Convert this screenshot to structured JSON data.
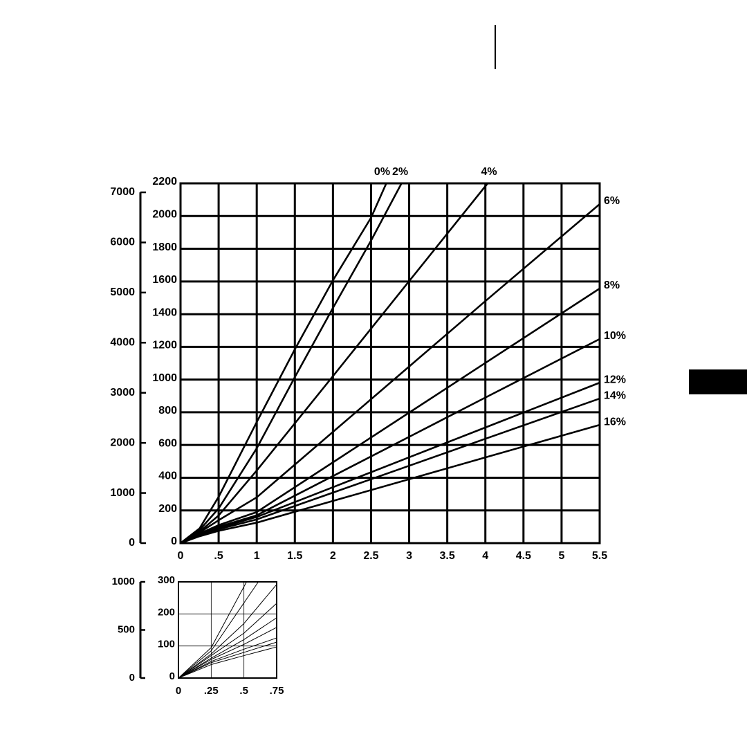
{
  "chart_data": [
    {
      "type": "line",
      "xlim": [
        0,
        5.5
      ],
      "ylim": [
        0,
        2200
      ],
      "y2lim": [
        0,
        7000
      ],
      "xticks": [
        0,
        {
          "value": 0.5,
          "label": ".5"
        },
        1,
        1.5,
        2,
        2.5,
        3,
        3.5,
        4,
        4.5,
        5,
        5.5
      ],
      "yticks": [
        0,
        200,
        400,
        600,
        800,
        1000,
        1200,
        1400,
        1600,
        1800,
        2000,
        2200
      ],
      "y2ticks": [
        0,
        1000,
        2000,
        3000,
        4000,
        5000,
        6000,
        7000
      ],
      "grid": true,
      "series": [
        {
          "name": "0%",
          "color": "#000000",
          "x": [
            0,
            0.25,
            0.5,
            1,
            1.5,
            2,
            2.5,
            2.7
          ],
          "values": [
            0,
            90,
            283,
            740,
            1185,
            1607,
            1990,
            2200
          ]
        },
        {
          "name": "2%",
          "color": "#000000",
          "x": [
            0,
            0.25,
            0.5,
            1,
            1.5,
            2,
            2.5,
            2.9
          ],
          "values": [
            0,
            80,
            212,
            580,
            1015,
            1438,
            1850,
            2200
          ]
        },
        {
          "name": "4%",
          "color": "#000000",
          "x": [
            0,
            0.25,
            0.5,
            1,
            2,
            3,
            4.03
          ],
          "values": [
            0,
            70,
            169,
            444,
            1021,
            1602,
            2200
          ]
        },
        {
          "name": "6%",
          "color": "#000000",
          "x": [
            0,
            0.25,
            0.5,
            1,
            2,
            3,
            4,
            5.5
          ],
          "values": [
            0,
            65,
            140,
            280,
            680,
            1080,
            1480,
            2073
          ]
        },
        {
          "name": "8%",
          "color": "#000000",
          "x": [
            0,
            0.25,
            0.5,
            1,
            2,
            3,
            4,
            5.5
          ],
          "values": [
            0,
            58,
            110,
            190,
            494,
            798,
            1102,
            1557
          ]
        },
        {
          "name": "10%",
          "color": "#000000",
          "x": [
            0,
            0.25,
            0.5,
            1,
            2,
            3,
            4,
            5.5
          ],
          "values": [
            0,
            54,
            100,
            170,
            410,
            650,
            890,
            1248
          ]
        },
        {
          "name": "12%",
          "color": "#000000",
          "x": [
            0,
            0.25,
            0.5,
            1,
            2,
            3,
            4,
            5.5
          ],
          "values": [
            0,
            50,
            92,
            160,
            342,
            525,
            707,
            981
          ]
        },
        {
          "name": "14%",
          "color": "#000000",
          "x": [
            0,
            0.25,
            0.5,
            1,
            2,
            3,
            4,
            5.5
          ],
          "values": [
            0,
            46,
            85,
            145,
            309,
            473,
            638,
            884
          ]
        },
        {
          "name": "16%",
          "color": "#000000",
          "x": [
            0,
            0.25,
            0.5,
            1,
            2,
            3,
            4,
            5.5
          ],
          "values": [
            0,
            42,
            75,
            125,
            258,
            391,
            524,
            723
          ]
        }
      ]
    },
    {
      "type": "line",
      "xlim": [
        0,
        0.75
      ],
      "ylim": [
        0,
        300
      ],
      "y2lim": [
        0,
        1000
      ],
      "xticks": [
        0,
        {
          "value": 0.25,
          "label": ".25"
        },
        {
          "value": 0.5,
          "label": ".5"
        },
        {
          "value": 0.75,
          "label": ".75"
        }
      ],
      "yticks": [
        0,
        100,
        200,
        300
      ],
      "y2ticks": [
        0,
        500,
        1000
      ],
      "grid": true,
      "series": [
        {
          "color": "#000000",
          "x": [
            0,
            0.25,
            0.52
          ],
          "values": [
            0,
            95,
            300
          ]
        },
        {
          "color": "#000000",
          "x": [
            0,
            0.25,
            0.61
          ],
          "values": [
            0,
            85,
            300
          ]
        },
        {
          "color": "#000000",
          "x": [
            0,
            0.25,
            0.5,
            0.75
          ],
          "values": [
            0,
            75,
            170,
            292
          ]
        },
        {
          "color": "#000000",
          "x": [
            0,
            0.25,
            0.5,
            0.75
          ],
          "values": [
            0,
            70,
            140,
            233
          ]
        },
        {
          "color": "#000000",
          "x": [
            0,
            0.25,
            0.5,
            0.75
          ],
          "values": [
            0,
            62,
            120,
            188
          ]
        },
        {
          "color": "#000000",
          "x": [
            0,
            0.25,
            0.5,
            0.75
          ],
          "values": [
            0,
            58,
            105,
            158
          ]
        },
        {
          "color": "#000000",
          "x": [
            0,
            0.25,
            0.5,
            0.75
          ],
          "values": [
            0,
            52,
            90,
            125
          ]
        },
        {
          "color": "#000000",
          "x": [
            0,
            0.25,
            0.5,
            0.75
          ],
          "values": [
            0,
            48,
            80,
            112
          ]
        },
        {
          "color": "#000000",
          "x": [
            0,
            0.25,
            0.5,
            0.75
          ],
          "values": [
            0,
            42,
            70,
            97
          ]
        }
      ]
    }
  ]
}
